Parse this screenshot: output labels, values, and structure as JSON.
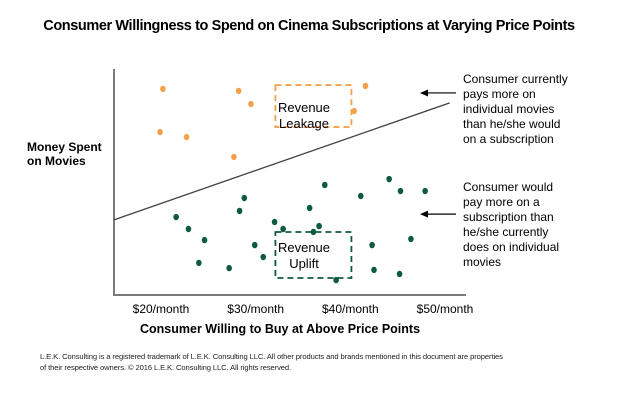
{
  "chart_data": {
    "type": "scatter",
    "title": "Consumer Willingness to Spend on Cinema Subscriptions at Varying Price Points",
    "xlabel": "Consumer Willing to Buy at Above Price Points",
    "ylabel": "Money Spent on Movies",
    "x_unit": "$/month",
    "xlim": [
      15,
      52
    ],
    "ylim": [
      0,
      100
    ],
    "y_scale_note": "relative scale, y-axis unlabeled",
    "x_ticks": [
      20,
      30,
      40,
      50
    ],
    "x_tick_labels": [
      "$20/month",
      "$30/month",
      "$40/month",
      "$50/month"
    ],
    "grid": false,
    "series": [
      {
        "name": "Revenue Leakage",
        "color": "#F5A04A",
        "points": [
          [
            20.2,
            91.2
          ],
          [
            19.9,
            72.1
          ],
          [
            22.7,
            69.9
          ],
          [
            28.2,
            90.3
          ],
          [
            29.5,
            84.5
          ],
          [
            27.7,
            61.1
          ],
          [
            40.4,
            81.4
          ],
          [
            41.6,
            92.5
          ]
        ]
      },
      {
        "name": "Revenue Uplift",
        "color": "#0E5A3F",
        "points": [
          [
            21.6,
            34.5
          ],
          [
            22.9,
            29.2
          ],
          [
            24.6,
            24.3
          ],
          [
            24.0,
            14.2
          ],
          [
            27.2,
            11.9
          ],
          [
            28.3,
            37.2
          ],
          [
            28.8,
            42.9
          ],
          [
            29.9,
            22.1
          ],
          [
            30.8,
            16.8
          ],
          [
            32.0,
            32.3
          ],
          [
            32.9,
            29.2
          ],
          [
            35.7,
            38.5
          ],
          [
            36.1,
            27.9
          ],
          [
            36.7,
            30.5
          ],
          [
            37.3,
            48.7
          ],
          [
            38.5,
            6.6
          ],
          [
            41.1,
            43.8
          ],
          [
            42.3,
            22.1
          ],
          [
            42.5,
            11.1
          ],
          [
            44.1,
            51.3
          ],
          [
            45.3,
            46.0
          ],
          [
            46.4,
            24.8
          ],
          [
            45.2,
            9.3
          ],
          [
            47.9,
            46.0
          ]
        ]
      }
    ],
    "trend_line": {
      "from": [
        15.0,
        33.2
      ],
      "to": [
        50.5,
        85.0
      ],
      "color": "#404040"
    },
    "annotations": [
      {
        "id": "leakage-box",
        "text_lines": [
          "Revenue",
          "Leakage"
        ],
        "color": "#F5A04A",
        "style": "dashed-box",
        "center": [
          36.1,
          83.6
        ]
      },
      {
        "id": "uplift-box",
        "text_lines": [
          "Revenue",
          "Uplift"
        ],
        "color": "#0E5A3F",
        "style": "dashed-box",
        "center": [
          36.1,
          17.7
        ]
      },
      {
        "id": "arrow-above",
        "y": 89.4
      },
      {
        "id": "arrow-below",
        "y": 35.8
      }
    ],
    "notes": {
      "above_line": "Consumer currently pays more on individual movies than he/she would on a subscription",
      "below_line": "Consumer would pay more on a subscription than he/she currently does on individual movies"
    }
  },
  "labels": {
    "title": "Consumer Willingness to Spend on Cinema Subscriptions at Varying Price Points",
    "ylabel_lines": [
      "Money Spent",
      "on Movies"
    ],
    "xlabel": "Consumer Willing to Buy at Above Price Points",
    "note_above_lines": [
      "Consumer currently",
      "pays more on",
      "individual movies",
      "than he/she would",
      "on a subscription"
    ],
    "note_below_lines": [
      "Consumer would",
      "pay more on a",
      "subscription than",
      "he/she currently",
      "does on individual",
      "movies"
    ],
    "leakage_lines": [
      "Revenue",
      "Leakage"
    ],
    "uplift_lines": [
      "Revenue",
      "Uplift"
    ],
    "footer_lines": [
      "L.E.K. Consulting is a registered trademark of L.E.K. Consulting LLC.  All other products and brands mentioned in this document are properties",
      "of their respective owners. © 2016 L.E.K. Consulting LLC.  All rights reserved."
    ]
  }
}
